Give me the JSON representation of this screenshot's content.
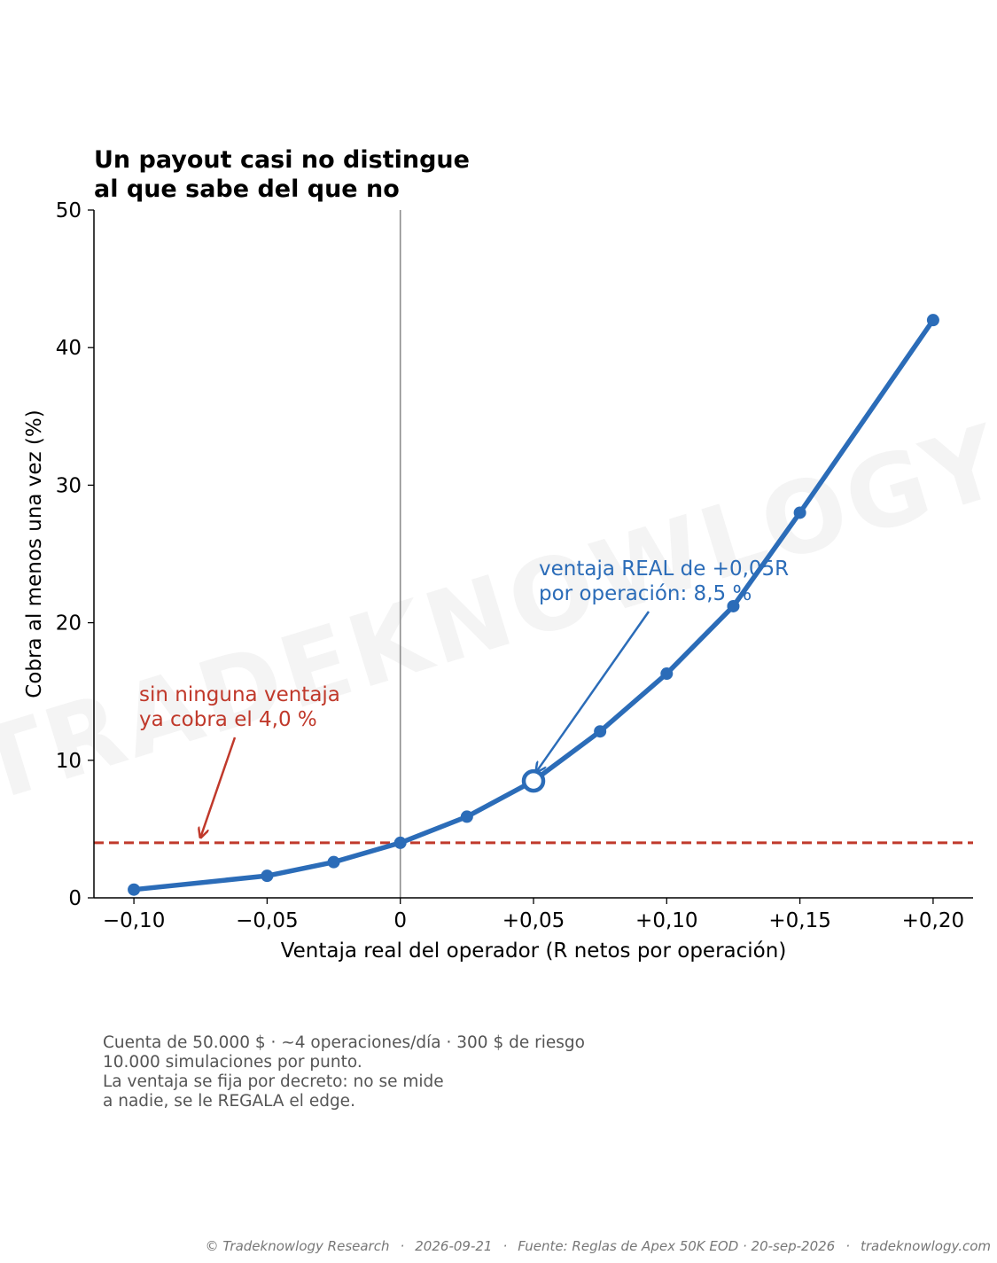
{
  "chart_data": {
    "type": "line",
    "title": [
      "Un payout casi no distingue",
      "al que sabe del que no"
    ],
    "xlabel": "Ventaja real del operador (R netos por operación)",
    "ylabel": "Cobra al menos una vez (%)",
    "xlim": [
      -0.115,
      0.215
    ],
    "ylim": [
      0,
      50
    ],
    "x_ticks": [
      -0.1,
      -0.05,
      0,
      0.05,
      0.1,
      0.15,
      0.2
    ],
    "x_tick_labels": [
      "−0,10",
      "−0,05",
      "0",
      "+0,05",
      "+0,10",
      "+0,15",
      "+0,20"
    ],
    "y_ticks": [
      0,
      10,
      20,
      30,
      40,
      50
    ],
    "y_tick_labels": [
      "0",
      "10",
      "20",
      "30",
      "40",
      "50"
    ],
    "grid": false,
    "series": [
      {
        "x": [
          -0.1,
          -0.05,
          -0.025,
          0,
          0.025,
          0.05,
          0.075,
          0.1,
          0.125,
          0.15,
          0.2
        ],
        "y": [
          0.6,
          1.6,
          2.6,
          4.0,
          5.9,
          8.5,
          12.1,
          16.3,
          21.2,
          28.0,
          42.0
        ],
        "color": "#2b6cb8"
      }
    ],
    "highlight_point": {
      "x": 0.05,
      "y": 8.5
    },
    "reference_lines": [
      {
        "type": "horizontal",
        "y": 4.0,
        "style": "dashed",
        "color": "#c0392b"
      },
      {
        "type": "vertical",
        "x": 0,
        "style": "solid",
        "color": "#8c8c8c"
      }
    ],
    "annotations": [
      {
        "lines": [
          "sin ninguna ventaja",
          "ya cobra el 4,0 %"
        ],
        "color": "#c0392b",
        "arrow_target": {
          "x": -0.075,
          "y": 4.0
        }
      },
      {
        "lines": [
          "ventaja REAL de +0,05R",
          "por operación: 8,5 %"
        ],
        "color": "#2b6cb8",
        "arrow_target": {
          "x": 0.05,
          "y": 8.5
        }
      }
    ],
    "watermark": "TRADEKNOWLOGY"
  },
  "footnote": [
    "Cuenta de 50.000 $ · ~4 operaciones/día · 300 $ de riesgo",
    "10.000 simulaciones por punto.",
    "La ventaja se fija por decreto: no se mide",
    "a nadie, se le REGALA el edge."
  ],
  "footer": {
    "copyright": "© Tradeknowlogy Research",
    "date": "2026-09-21",
    "source": "Fuente: Reglas de Apex 50K EOD · 20-sep-2026",
    "site": "tradeknowlogy.com",
    "separator": "·"
  }
}
